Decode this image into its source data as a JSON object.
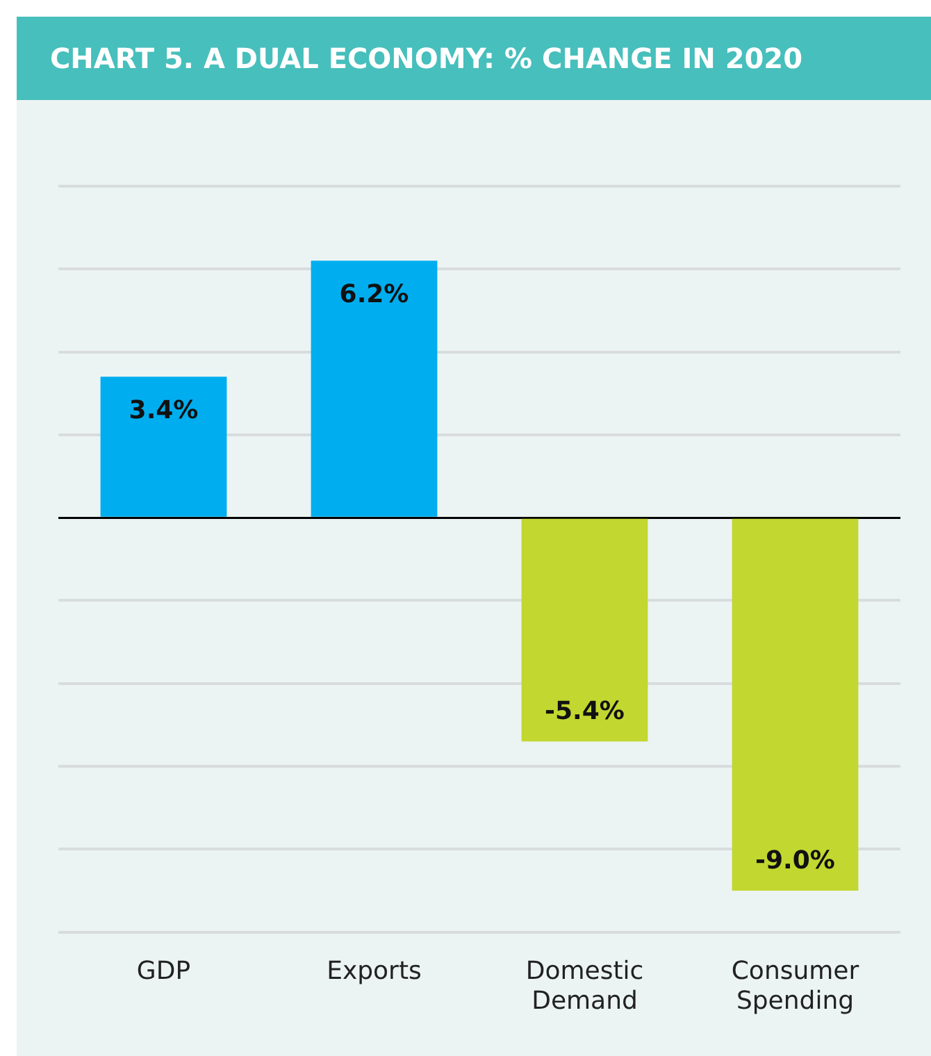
{
  "chart_data": {
    "type": "bar",
    "title": "CHART 5. A DUAL ECONOMY: % CHANGE IN 2020",
    "categories": [
      "GDP",
      "Exports",
      "Domestic Demand",
      "Consumer Spending"
    ],
    "values": [
      3.4,
      6.2,
      -5.4,
      -9.0
    ],
    "colors": [
      "#00aeef",
      "#00aeef",
      "#c2d730",
      "#c2d730"
    ],
    "value_labels": [
      "3.4%",
      "6.2%",
      "-5.4%",
      "-9.0%"
    ],
    "grid": "y",
    "tick_labels": "x"
  }
}
